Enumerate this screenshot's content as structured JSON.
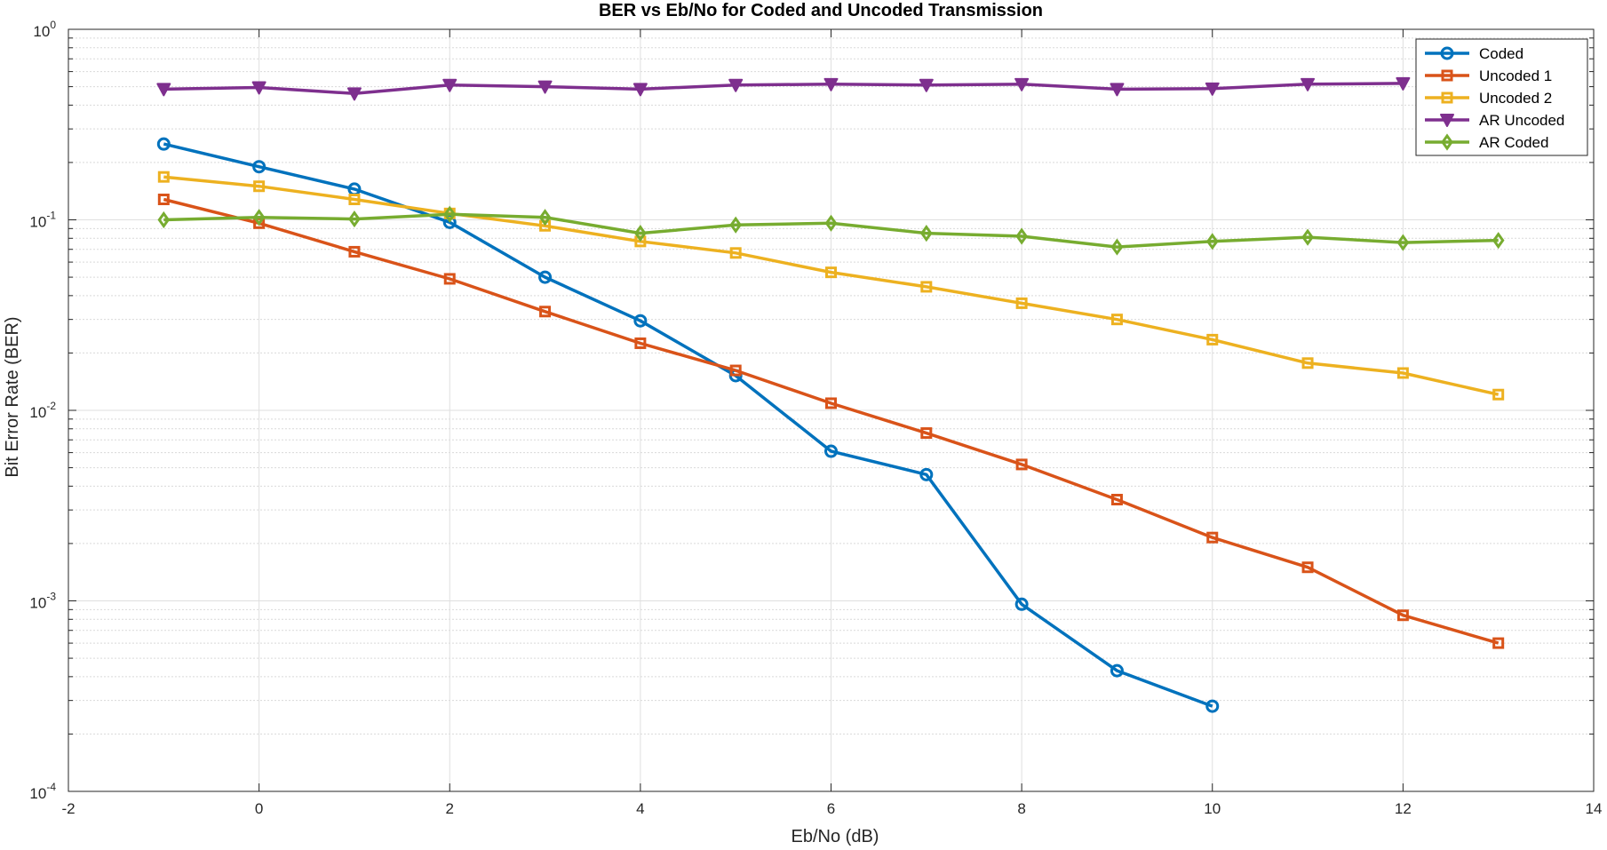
{
  "chart_data": {
    "type": "line",
    "title": "BER vs Eb/No for Coded and Uncoded Transmission",
    "xlabel": "Eb/No (dB)",
    "ylabel": "Bit Error Rate (BER)",
    "xlim": [
      -2,
      14
    ],
    "ylim": [
      0.0001,
      1
    ],
    "yscale": "log",
    "grid": true,
    "minor_grid": true,
    "legend_position": "top-right",
    "x_ticks": [
      "-2",
      "0",
      "2",
      "4",
      "6",
      "8",
      "10",
      "12",
      "14"
    ],
    "y_ticks": [
      {
        "base": "10",
        "exp": "0"
      },
      {
        "base": "10",
        "exp": "-1"
      },
      {
        "base": "10",
        "exp": "-2"
      },
      {
        "base": "10",
        "exp": "-3"
      },
      {
        "base": "10",
        "exp": "-4"
      }
    ],
    "series": [
      {
        "name": "Coded",
        "color": "#0072BD",
        "marker": "circle",
        "x": [
          -1,
          0,
          1,
          2,
          3,
          4,
          5,
          6,
          7,
          8,
          9,
          10
        ],
        "y": [
          0.25,
          0.19,
          0.145,
          0.097,
          0.05,
          0.0295,
          0.0152,
          0.0061,
          0.0046,
          0.00096,
          0.00043,
          0.00028
        ]
      },
      {
        "name": "Uncoded 1",
        "color": "#D95319",
        "marker": "square",
        "x": [
          -1,
          0,
          1,
          2,
          3,
          4,
          5,
          6,
          7,
          8,
          9,
          10,
          11,
          12,
          13
        ],
        "y": [
          0.128,
          0.096,
          0.068,
          0.049,
          0.033,
          0.0225,
          0.0162,
          0.0109,
          0.0076,
          0.0052,
          0.0034,
          0.00215,
          0.0015,
          0.00084,
          0.0006
        ]
      },
      {
        "name": "Uncoded 2",
        "color": "#EDB120",
        "marker": "square",
        "x": [
          -1,
          0,
          1,
          2,
          3,
          4,
          5,
          6,
          7,
          8,
          9,
          10,
          11,
          12,
          13
        ],
        "y": [
          0.168,
          0.15,
          0.128,
          0.108,
          0.093,
          0.077,
          0.067,
          0.053,
          0.0445,
          0.0365,
          0.03,
          0.0235,
          0.0177,
          0.0157,
          0.0121
        ]
      },
      {
        "name": "AR Uncoded",
        "color": "#7E2F8E",
        "marker": "triangle-down",
        "x": [
          -1,
          0,
          1,
          2,
          3,
          4,
          5,
          6,
          7,
          8,
          9,
          10,
          11,
          12
        ],
        "y": [
          0.485,
          0.495,
          0.46,
          0.51,
          0.5,
          0.485,
          0.51,
          0.515,
          0.51,
          0.515,
          0.485,
          0.488,
          0.515,
          0.52
        ]
      },
      {
        "name": "AR Coded",
        "color": "#77AC30",
        "marker": "diamond",
        "x": [
          -1,
          0,
          1,
          2,
          3,
          4,
          5,
          6,
          7,
          8,
          9,
          10,
          11,
          12,
          13
        ],
        "y": [
          0.1,
          0.103,
          0.101,
          0.107,
          0.103,
          0.085,
          0.094,
          0.096,
          0.085,
          0.082,
          0.072,
          0.077,
          0.081,
          0.076,
          0.078
        ]
      }
    ]
  }
}
